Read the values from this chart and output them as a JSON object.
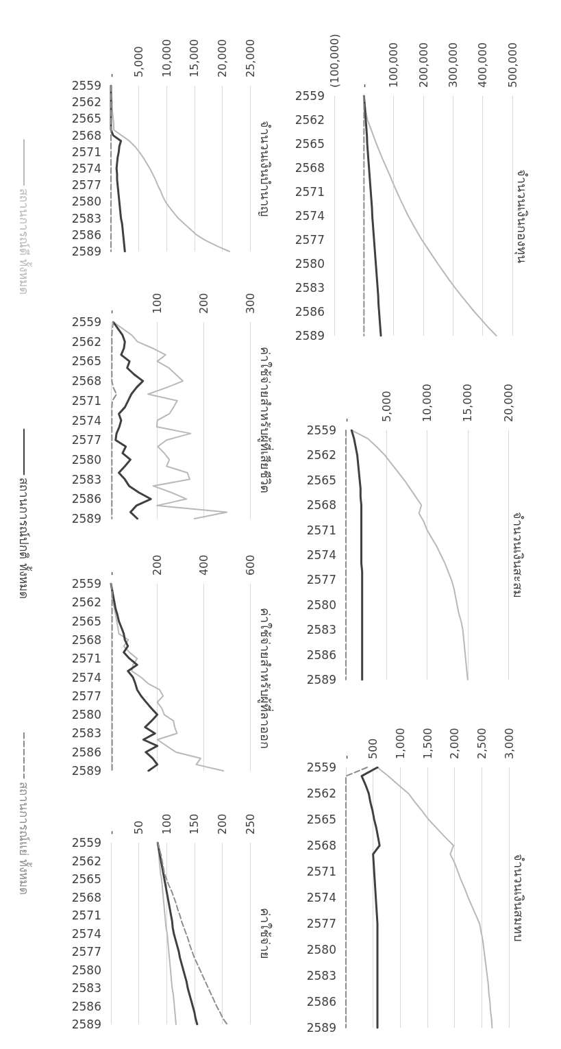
{
  "chart_data": [
    {
      "type": "line",
      "orientation": "horizontal",
      "title": "จำนวนเงินกองทุน",
      "categories": [
        "2559",
        null,
        null,
        "2562",
        null,
        null,
        "2565",
        null,
        null,
        "2568",
        null,
        null,
        "2571",
        null,
        null,
        "2574",
        null,
        null,
        "2577",
        null,
        null,
        "2580",
        null,
        null,
        "2583",
        null,
        null,
        "2586",
        null,
        null,
        "2589"
      ],
      "xlim": [
        -100000,
        500000
      ],
      "xticks": [
        {
          "value": -100000,
          "label": "(100,000)"
        },
        {
          "value": 0,
          "label": "-"
        },
        {
          "value": 100000,
          "label": "100,000"
        },
        {
          "value": 200000,
          "label": "200,000"
        },
        {
          "value": 300000,
          "label": "300,000"
        },
        {
          "value": 400000,
          "label": "400,000"
        },
        {
          "value": 500000,
          "label": "500,000"
        }
      ],
      "grid": "x",
      "legend": "left",
      "series": [
        {
          "name": "สถานการณ์ดี ทั้งหมด",
          "color": "#b8b8b8",
          "values": [
            0,
            3000,
            7000,
            12000,
            22000,
            32000,
            42000,
            53000,
            64000,
            76000,
            88000,
            99000,
            111000,
            123000,
            136000,
            149000,
            164000,
            179000,
            195000,
            213000,
            231000,
            249000,
            268000,
            287000,
            307000,
            328000,
            350000,
            372000,
            396000,
            420000,
            446000
          ]
        },
        {
          "name": "สถานการณ์ปกติ ทั้งหมด",
          "color": "#404040",
          "values": [
            0,
            2000,
            4000,
            6000,
            8000,
            10000,
            11000,
            13000,
            15000,
            17000,
            19000,
            21000,
            23000,
            25000,
            27000,
            28000,
            30000,
            32000,
            34000,
            36000,
            38000,
            40000,
            42000,
            44000,
            46000,
            48000,
            49000,
            51000,
            53000,
            55000,
            57000
          ]
        },
        {
          "name": "สถานการณ์แย่ ทั้งหมด",
          "color": "#8c8c8c",
          "line_style": "dashed",
          "values": [
            0,
            0,
            0,
            0,
            0,
            0,
            0,
            0,
            0,
            0,
            0,
            0,
            0,
            0,
            0,
            0,
            0,
            0,
            0,
            0,
            0,
            0,
            0,
            0,
            0,
            0,
            0,
            0,
            0,
            0,
            0
          ]
        }
      ]
    },
    {
      "type": "line",
      "orientation": "horizontal",
      "title": "จำนวนเงินสะสม",
      "categories": [
        "2559",
        null,
        null,
        "2562",
        null,
        null,
        "2565",
        null,
        null,
        "2568",
        null,
        null,
        "2571",
        null,
        null,
        "2574",
        null,
        null,
        "2577",
        null,
        null,
        "2580",
        null,
        null,
        "2583",
        null,
        null,
        "2586",
        null,
        null,
        "2589"
      ],
      "xlim": [
        0,
        20000
      ],
      "xticks": [
        {
          "value": 0,
          "label": "-"
        },
        {
          "value": 5000,
          "label": "5,000"
        },
        {
          "value": 10000,
          "label": "10,000"
        },
        {
          "value": 15000,
          "label": "15,000"
        },
        {
          "value": 20000,
          "label": "20,000"
        }
      ],
      "grid": "x",
      "series": [
        {
          "color": "#b8b8b8",
          "values": [
            700,
            2700,
            3800,
            4800,
            5600,
            6400,
            7200,
            7900,
            8600,
            9300,
            9000,
            9600,
            10000,
            10600,
            11200,
            11700,
            12200,
            12600,
            13000,
            13300,
            13500,
            13700,
            13900,
            14200,
            14400,
            14500,
            14600,
            14700,
            14800,
            14900,
            15000
          ]
        },
        {
          "color": "#404040",
          "values": [
            700,
            1000,
            1200,
            1400,
            1500,
            1600,
            1700,
            1800,
            1800,
            1900,
            1900,
            1900,
            1900,
            1900,
            1900,
            1900,
            1900,
            2000,
            2000,
            2000,
            2000,
            2000,
            2000,
            2000,
            2000,
            2000,
            2000,
            2000,
            2000,
            2000,
            2000
          ]
        },
        {
          "color": "#8c8c8c",
          "line_style": "dashed",
          "values": [
            0,
            0,
            0,
            0,
            0,
            0,
            0,
            0,
            0,
            0,
            0,
            0,
            0,
            0,
            0,
            0,
            0,
            0,
            0,
            0,
            0,
            0,
            0,
            0,
            0,
            0,
            0,
            0,
            0,
            0,
            0
          ]
        }
      ]
    },
    {
      "type": "line",
      "orientation": "horizontal",
      "title": "จำนวนเงินสมทบ",
      "categories": [
        "2559",
        null,
        null,
        "2562",
        null,
        null,
        "2565",
        null,
        null,
        "2568",
        null,
        null,
        "2571",
        null,
        null,
        "2574",
        null,
        null,
        "2577",
        null,
        null,
        "2580",
        null,
        null,
        "2583",
        null,
        null,
        "2586",
        null,
        null,
        "2589"
      ],
      "xlim": [
        0,
        3000
      ],
      "xticks": [
        {
          "value": 0,
          "label": "-"
        },
        500,
        {
          "value": 1000,
          "label": "1,000"
        },
        {
          "value": 1500,
          "label": "1,500"
        },
        {
          "value": 2000,
          "label": "2,000"
        },
        {
          "value": 2500,
          "label": "2,500"
        },
        {
          "value": 3000,
          "label": "3,000"
        }
      ],
      "grid": "x",
      "series": [
        {
          "color": "#b8b8b8",
          "values": [
            580,
            780,
            960,
            1150,
            1270,
            1400,
            1520,
            1670,
            1820,
            1980,
            1920,
            2000,
            2060,
            2120,
            2190,
            2250,
            2320,
            2390,
            2460,
            2490,
            2520,
            2540,
            2560,
            2580,
            2600,
            2620,
            2630,
            2650,
            2660,
            2680,
            2690
          ]
        },
        {
          "color": "#404040",
          "values": [
            580,
            290,
            360,
            420,
            450,
            490,
            520,
            560,
            590,
            620,
            500,
            510,
            520,
            530,
            540,
            550,
            560,
            570,
            580,
            580,
            580,
            580,
            580,
            580,
            580,
            580,
            580,
            580,
            580,
            580,
            580
          ]
        },
        {
          "color": "#8c8c8c",
          "line_style": "dashed",
          "values": [
            390,
            0,
            0,
            0,
            0,
            0,
            0,
            0,
            0,
            0,
            0,
            0,
            0,
            0,
            0,
            0,
            0,
            0,
            0,
            0,
            0,
            0,
            0,
            0,
            0,
            0,
            0,
            0,
            0,
            0,
            0
          ]
        }
      ]
    },
    {
      "type": "line",
      "orientation": "horizontal",
      "title": "จำนวนเงินบำนาญ",
      "categories": [
        "2559",
        null,
        null,
        "2562",
        null,
        null,
        "2565",
        null,
        null,
        "2568",
        null,
        null,
        "2571",
        null,
        null,
        "2574",
        null,
        null,
        "2577",
        null,
        null,
        "2580",
        null,
        null,
        "2583",
        null,
        null,
        "2586",
        null,
        null,
        "2589"
      ],
      "xlim": [
        0,
        25000
      ],
      "xticks": [
        {
          "value": 0,
          "label": "-"
        },
        {
          "value": 5000,
          "label": "5,000"
        },
        {
          "value": 10000,
          "label": "10,000"
        },
        {
          "value": 15000,
          "label": "15,000"
        },
        {
          "value": 20000,
          "label": "20,000"
        },
        {
          "value": 25000,
          "label": "25,000"
        }
      ],
      "grid": "x",
      "series": [
        {
          "color": "#b8b8b8",
          "values": [
            0,
            0,
            100,
            200,
            200,
            300,
            400,
            500,
            500,
            1900,
            3300,
            4300,
            5100,
            5800,
            6400,
            7000,
            7500,
            8000,
            8400,
            8900,
            9300,
            9800,
            10500,
            11300,
            12100,
            13200,
            14300,
            15400,
            17000,
            19000,
            21300
          ]
        },
        {
          "color": "#404040",
          "values": [
            0,
            0,
            0,
            0,
            0,
            0,
            0,
            0,
            0,
            400,
            1800,
            1500,
            1400,
            1200,
            1100,
            1000,
            1100,
            1100,
            1200,
            1300,
            1400,
            1500,
            1600,
            1700,
            1800,
            2000,
            2100,
            2200,
            2300,
            2400,
            2500
          ]
        },
        {
          "color": "#8c8c8c",
          "line_style": "dashed",
          "values": [
            0,
            0,
            0,
            0,
            0,
            0,
            0,
            0,
            0,
            0,
            0,
            0,
            0,
            0,
            0,
            0,
            0,
            0,
            0,
            0,
            0,
            0,
            0,
            0,
            0,
            0,
            0,
            0,
            0,
            0,
            0
          ]
        }
      ]
    },
    {
      "type": "line",
      "orientation": "horizontal",
      "title": "ค่าใช้จ่ายสำหรับผู้ที่เสียชีวิต",
      "categories": [
        "2559",
        null,
        null,
        "2562",
        null,
        null,
        "2565",
        null,
        null,
        "2568",
        null,
        null,
        "2571",
        null,
        null,
        "2574",
        null,
        null,
        "2577",
        null,
        null,
        "2580",
        null,
        null,
        "2583",
        null,
        null,
        "2586",
        null,
        null,
        "2589"
      ],
      "xlim": [
        0,
        300
      ],
      "xticks": [
        {
          "value": 0,
          "label": "-"
        },
        100,
        200,
        300
      ],
      "grid": "x",
      "series": [
        {
          "color": "#b8b8b8",
          "values": [
            5,
            25,
            45,
            57,
            90,
            118,
            100,
            125,
            140,
            155,
            120,
            80,
            143,
            135,
            126,
            100,
            99,
            172,
            120,
            101,
            115,
            126,
            120,
            165,
            170,
            91,
            130,
            163,
            99,
            250,
            180
          ]
        },
        {
          "color": "#404040",
          "values": [
            5,
            15,
            25,
            30,
            28,
            22,
            40,
            35,
            50,
            69,
            55,
            44,
            37,
            30,
            17,
            22,
            18,
            12,
            10,
            32,
            25,
            42,
            30,
            17,
            30,
            39,
            60,
            86,
            55,
            42,
            57
          ]
        },
        {
          "color": "#8c8c8c",
          "line_style": "dashed",
          "values": [
            5,
            3,
            2,
            2,
            2,
            2,
            2,
            2,
            2,
            2,
            5,
            12,
            3,
            2,
            2,
            2,
            2,
            2,
            2,
            2,
            2,
            2,
            2,
            2,
            2,
            2,
            2,
            2,
            2,
            2,
            2
          ]
        }
      ]
    },
    {
      "type": "line",
      "orientation": "horizontal",
      "title": "ค่าใช้จ่ายสำหรับผู้ที่ลาออก",
      "categories": [
        "2559",
        null,
        null,
        "2562",
        null,
        null,
        "2565",
        null,
        null,
        "2568",
        null,
        null,
        "2571",
        null,
        null,
        "2574",
        null,
        null,
        "2577",
        null,
        null,
        "2580",
        null,
        null,
        "2583",
        null,
        null,
        "2586",
        null,
        null,
        "2589"
      ],
      "xlim": [
        0,
        600
      ],
      "xticks": [
        {
          "value": 0,
          "label": "-"
        },
        200,
        400,
        600
      ],
      "grid": "x",
      "series": [
        {
          "color": "#b8b8b8",
          "values": [
            0,
            3,
            5,
            10,
            15,
            20,
            25,
            30,
            34,
            75,
            55,
            80,
            113,
            95,
            90,
            130,
            160,
            210,
            225,
            200,
            220,
            230,
            270,
            275,
            285,
            200,
            240,
            280,
            387,
            368,
            485
          ]
        },
        {
          "color": "#404040",
          "values": [
            0,
            5,
            10,
            15,
            20,
            28,
            34,
            45,
            55,
            60,
            73,
            55,
            80,
            113,
            73,
            95,
            105,
            113,
            130,
            152,
            175,
            200,
            175,
            147,
            190,
            140,
            200,
            150,
            180,
            200,
            162
          ]
        },
        {
          "color": "#8c8c8c",
          "line_style": "dashed",
          "values": [
            0,
            5,
            5,
            5,
            5,
            5,
            5,
            5,
            5,
            5,
            5,
            5,
            5,
            5,
            5,
            5,
            5,
            5,
            5,
            5,
            5,
            5,
            5,
            5,
            5,
            5,
            5,
            5,
            5,
            5,
            5
          ]
        }
      ]
    },
    {
      "type": "line",
      "orientation": "horizontal",
      "title": "ค่าใช้จ่าย",
      "categories": [
        "2559",
        null,
        null,
        "2562",
        null,
        null,
        "2565",
        null,
        null,
        "2568",
        null,
        null,
        "2571",
        null,
        null,
        "2574",
        null,
        null,
        "2577",
        null,
        null,
        "2580",
        null,
        null,
        "2583",
        null,
        null,
        "2586",
        null,
        null,
        "2589"
      ],
      "xlim": [
        0,
        250
      ],
      "xticks": [
        {
          "value": 0,
          "label": "-"
        },
        50,
        100,
        150,
        200,
        250
      ],
      "grid": "x",
      "series": [
        {
          "color": "#b8b8b8",
          "values": [
            84,
            85,
            86,
            87,
            88,
            89,
            91,
            92,
            93,
            94,
            95,
            96,
            97,
            98,
            99,
            101,
            102,
            103,
            104,
            105,
            106,
            107,
            108,
            109,
            110,
            112,
            113,
            114,
            115,
            116,
            117
          ]
        },
        {
          "color": "#404040",
          "values": [
            84,
            86,
            88,
            90,
            92,
            94,
            96,
            98,
            100,
            102,
            104,
            106,
            108,
            110,
            111,
            113,
            116,
            119,
            122,
            124,
            127,
            130,
            133,
            136,
            138,
            141,
            144,
            147,
            150,
            152,
            155
          ]
        },
        {
          "color": "#8c8c8c",
          "line_style": "dashed",
          "values": [
            84,
            87,
            90,
            92,
            94,
            96,
            100,
            104,
            109,
            113,
            117,
            120,
            124,
            127,
            131,
            135,
            139,
            142,
            146,
            150,
            155,
            160,
            165,
            170,
            175,
            180,
            185,
            190,
            196,
            201,
            209
          ]
        }
      ]
    }
  ]
}
